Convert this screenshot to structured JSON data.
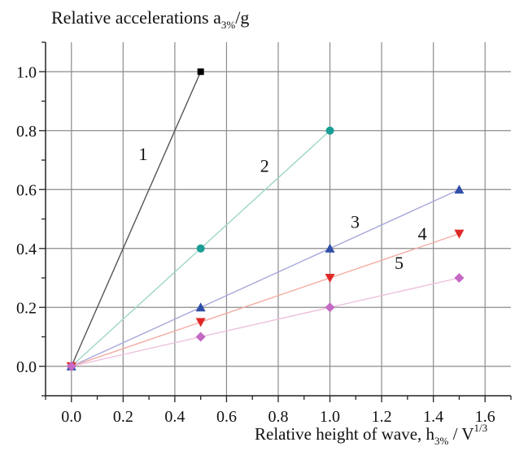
{
  "chart_data": {
    "type": "line",
    "title": "",
    "ylabel": {
      "main": "Relative accelerations  a",
      "sub": "3%",
      "tail": "/g"
    },
    "xlabel": {
      "main": "Relative height of wave, h",
      "sub": "3%",
      "mid": " / V",
      "sup": "1/3"
    },
    "xlim": [
      -0.1,
      1.7
    ],
    "ylim": [
      -0.1,
      1.1
    ],
    "x_ticks": [
      0.0,
      0.2,
      0.4,
      0.6,
      0.8,
      1.0,
      1.2,
      1.4,
      1.6
    ],
    "x_tick_labels": [
      "0.0",
      "0.2",
      "0.4",
      "0.6",
      "0.8",
      "1.0",
      "1.2",
      "1.4",
      "1.6"
    ],
    "y_ticks": [
      0.0,
      0.2,
      0.4,
      0.6,
      0.8,
      1.0
    ],
    "y_tick_labels": [
      "0.0",
      "0.2",
      "0.4",
      "0.6",
      "0.8",
      "1.0"
    ],
    "grid": true,
    "series": [
      {
        "label": "1",
        "marker": "square",
        "color": "#000000",
        "line_color": "#555555",
        "x": [
          0,
          0.5
        ],
        "y": [
          0,
          1.0
        ],
        "label_pos": [
          0.26,
          0.7
        ]
      },
      {
        "label": "2",
        "marker": "circle",
        "color": "#1a9e96",
        "line_color": "#9fd6c8",
        "x": [
          0,
          0.5,
          1.0
        ],
        "y": [
          0,
          0.4,
          0.8
        ],
        "label_pos": [
          0.73,
          0.66
        ]
      },
      {
        "label": "3",
        "marker": "triangle-up",
        "color": "#2f4fa8",
        "line_color": "#a7a7dc",
        "x": [
          0,
          0.5,
          1.0,
          1.5
        ],
        "y": [
          0,
          0.2,
          0.4,
          0.6
        ],
        "label_pos": [
          1.08,
          0.47
        ]
      },
      {
        "label": "4",
        "marker": "triangle-down",
        "color": "#e02828",
        "line_color": "#f3aaa2",
        "x": [
          0,
          0.5,
          1.0,
          1.5
        ],
        "y": [
          0,
          0.15,
          0.3,
          0.45
        ],
        "label_pos": [
          1.34,
          0.43
        ]
      },
      {
        "label": "5",
        "marker": "diamond",
        "color": "#c469c4",
        "line_color": "#edc0dc",
        "x": [
          0,
          0.5,
          1.0,
          1.5
        ],
        "y": [
          0,
          0.1,
          0.2,
          0.3
        ],
        "label_pos": [
          1.25,
          0.33
        ]
      }
    ]
  }
}
